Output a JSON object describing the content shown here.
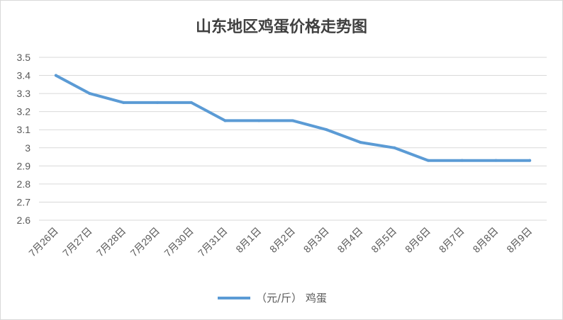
{
  "chart_data": {
    "type": "line",
    "title": "山东地区鸡蛋价格走势图",
    "categories": [
      "7月26日",
      "7月27日",
      "7月28日",
      "7月29日",
      "7月30日",
      "7月31日",
      "8月1日",
      "8月2日",
      "8月3日",
      "8月4日",
      "8月5日",
      "8月6日",
      "8月7日",
      "8月8日",
      "8月9日"
    ],
    "series": [
      {
        "name": "（元/斤） 鸡蛋",
        "color": "#5b9bd5",
        "values": [
          3.4,
          3.3,
          3.25,
          3.25,
          3.25,
          3.15,
          3.15,
          3.15,
          3.1,
          3.03,
          3.0,
          2.93,
          2.93,
          2.93,
          2.93
        ]
      }
    ],
    "ylim": [
      2.6,
      3.5
    ],
    "yticks": [
      "2.6",
      "2.7",
      "2.8",
      "2.9",
      "3",
      "3.1",
      "3.2",
      "3.3",
      "3.4",
      "3.5"
    ],
    "grid": true,
    "legend_position": "bottom"
  }
}
